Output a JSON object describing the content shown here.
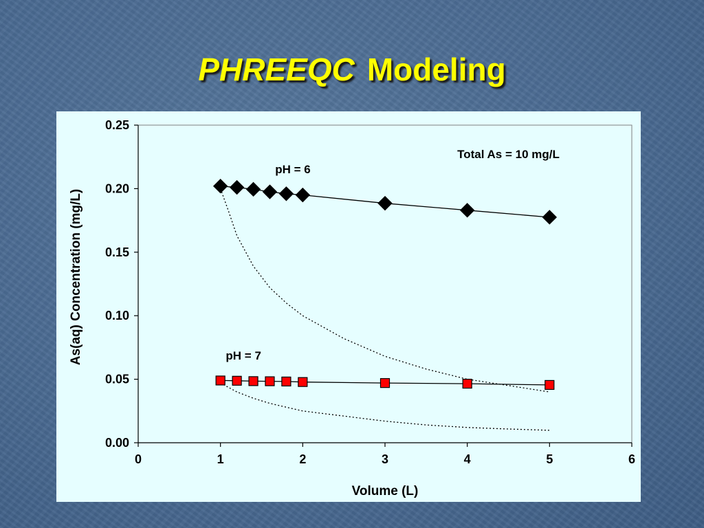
{
  "slide": {
    "title_part1": "PHREEQC",
    "title_part2": "Modeling",
    "title_color": "#ffff00",
    "background_color": "#4a6a91"
  },
  "chart_data": {
    "type": "line",
    "title": "",
    "xlabel": "Volume (L)",
    "ylabel": "As(aq) Concentration (mg/L)",
    "xlim": [
      0,
      6
    ],
    "ylim": [
      0,
      0.25
    ],
    "xticks": [
      0,
      1,
      2,
      3,
      4,
      5,
      6
    ],
    "yticks": [
      0.0,
      0.05,
      0.1,
      0.15,
      0.2,
      0.25
    ],
    "ytick_labels": [
      "0.00",
      "0.05",
      "0.10",
      "0.15",
      "0.20",
      "0.25"
    ],
    "grid": false,
    "plot_background": "#e6feff",
    "annotations": [
      {
        "text": "Total As = 10 mg/L",
        "x": 4.5,
        "y": 0.224,
        "anchor": "middle"
      },
      {
        "text": "pH = 6",
        "x": 1.88,
        "y": 0.212,
        "anchor": "middle"
      },
      {
        "text": "pH = 7",
        "x": 1.28,
        "y": 0.0655,
        "anchor": "middle"
      }
    ],
    "series": [
      {
        "name": "pH = 6",
        "marker": "diamond",
        "color": "#000000",
        "line": "solid",
        "x": [
          1.0,
          1.2,
          1.4,
          1.6,
          1.8,
          2.0,
          3.0,
          4.0,
          5.0
        ],
        "y": [
          0.202,
          0.201,
          0.1995,
          0.1975,
          0.196,
          0.195,
          0.1885,
          0.183,
          0.1775
        ]
      },
      {
        "name": "pH = 7",
        "marker": "square",
        "color": "#ff0000",
        "line": "solid",
        "x": [
          1.0,
          1.2,
          1.4,
          1.6,
          1.8,
          2.0,
          3.0,
          4.0,
          5.0
        ],
        "y": [
          0.049,
          0.0488,
          0.0485,
          0.0484,
          0.0482,
          0.0478,
          0.047,
          0.0465,
          0.0455
        ]
      },
      {
        "marker": "none",
        "color": "#000000",
        "line": "dotted",
        "x": [
          1.0,
          1.1,
          1.2,
          1.4,
          1.6,
          1.8,
          2.0,
          2.5,
          3.0,
          3.5,
          4.0,
          4.5,
          5.0
        ],
        "y": [
          0.2,
          0.182,
          0.163,
          0.139,
          0.122,
          0.11,
          0.1,
          0.082,
          0.068,
          0.058,
          0.05,
          0.045,
          0.04
        ]
      },
      {
        "marker": "none",
        "color": "#000000",
        "line": "dotted",
        "x": [
          1.0,
          1.2,
          1.4,
          1.6,
          1.8,
          2.0,
          2.5,
          3.0,
          3.5,
          4.0,
          4.5,
          5.0
        ],
        "y": [
          0.047,
          0.04,
          0.035,
          0.031,
          0.028,
          0.025,
          0.021,
          0.017,
          0.014,
          0.012,
          0.0108,
          0.0098
        ]
      }
    ]
  }
}
